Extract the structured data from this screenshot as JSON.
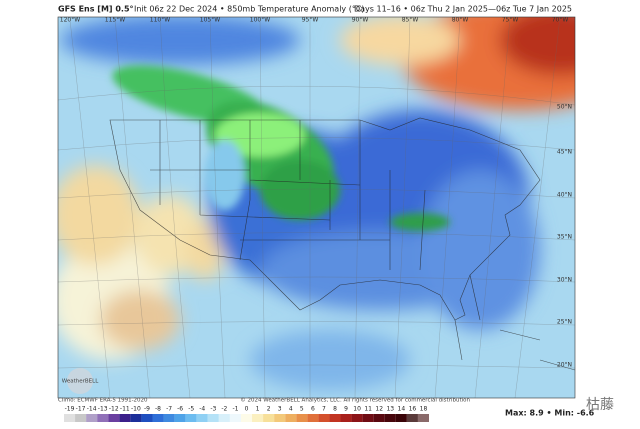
{
  "header": {
    "model": "GFS Ens [M] 0.5°",
    "init": "Init 06z 22 Dec 2024 • 850mb Temperature Anomaly (°C)",
    "valid": "Days 11–16 • 06z Thu 2 Jan 2025—06z Tue 7 Jan 2025"
  },
  "map": {
    "longitudes": [
      "120°W",
      "115°W",
      "110°W",
      "105°W",
      "100°W",
      "95°W",
      "90°W",
      "85°W",
      "80°W",
      "75°W",
      "70°W"
    ],
    "latitudes": [
      "50°N",
      "45°N",
      "40°N",
      "35°N",
      "30°N",
      "25°N",
      "20°N"
    ],
    "logo": "WeatherBELL"
  },
  "footer": {
    "climo": "Climo: ECMWF ERA-5 1991-2020",
    "copyright": "© 2024 WeatherBELL Analytics, LLC. All rights reserved for commercial distribution",
    "stats": "Max: 8.9 • Min: -6.6",
    "watermark": "枯藤"
  },
  "colorbar": {
    "labels": [
      "-19",
      "-17",
      "-14",
      "-13",
      "-12",
      "-11",
      "-10",
      "-9",
      "-8",
      "-7",
      "-6",
      "-5",
      "-4",
      "-3",
      "-2",
      "-1",
      "0",
      "1",
      "2",
      "3",
      "4",
      "5",
      "6",
      "7",
      "8",
      "9",
      "10",
      "11",
      "12",
      "13",
      "14",
      "16",
      "18"
    ]
  }
}
